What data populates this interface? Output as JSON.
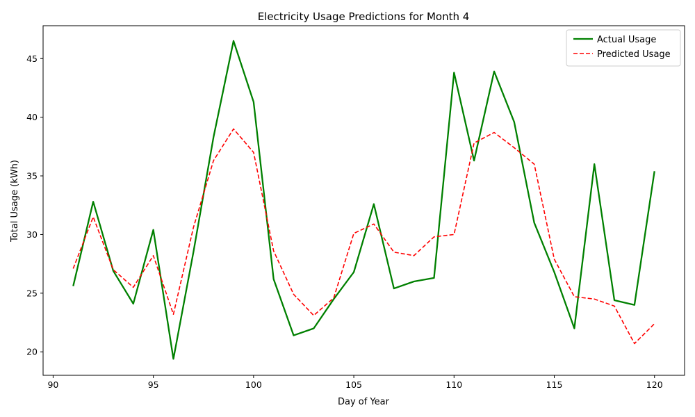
{
  "chart_data": {
    "type": "line",
    "title": "Electricity Usage Predictions for Month 4",
    "xlabel": "Day of Year",
    "ylabel": "Total Usage (kWh)",
    "xlim": [
      89.5,
      121.5
    ],
    "ylim": [
      18.0,
      47.8
    ],
    "xticks": [
      90,
      95,
      100,
      105,
      110,
      115,
      120
    ],
    "yticks": [
      20,
      25,
      30,
      35,
      40,
      45
    ],
    "grid": false,
    "legend_position": "top-right",
    "x": [
      91,
      92,
      93,
      94,
      95,
      96,
      97,
      98,
      99,
      100,
      101,
      102,
      103,
      104,
      105,
      106,
      107,
      108,
      109,
      110,
      111,
      112,
      113,
      114,
      115,
      116,
      117,
      118,
      119,
      120
    ],
    "series": [
      {
        "name": "Actual Usage",
        "color": "#008000",
        "style": "solid",
        "values": [
          25.6,
          32.8,
          26.9,
          24.1,
          30.4,
          19.4,
          28.5,
          38.3,
          46.5,
          41.3,
          26.2,
          21.4,
          22.0,
          24.5,
          26.8,
          32.6,
          25.4,
          26.0,
          26.3,
          43.8,
          36.3,
          43.9,
          39.6,
          31.0,
          26.8,
          22.0,
          36.0,
          24.4,
          24.0,
          35.4
        ]
      },
      {
        "name": "Predicted Usage",
        "color": "#ff0000",
        "style": "dashed",
        "values": [
          27.1,
          31.5,
          27.0,
          25.5,
          28.2,
          23.2,
          30.6,
          36.3,
          39.0,
          37.0,
          28.6,
          24.9,
          23.1,
          24.6,
          30.1,
          30.9,
          28.5,
          28.2,
          29.8,
          30.0,
          37.8,
          38.7,
          37.4,
          36.0,
          27.9,
          24.7,
          24.5,
          23.9,
          20.7,
          22.4
        ]
      }
    ]
  }
}
